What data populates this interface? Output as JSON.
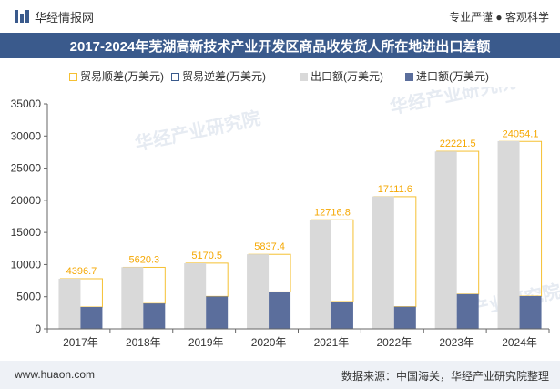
{
  "header": {
    "brand": "华经情报网",
    "tagline": "专业严谨 ● 客观科学"
  },
  "title": "2017-2024年芜湖高新技术产业开发区商品收发货人所在地进出口差额",
  "watermark": "华经产业研究院",
  "colors": {
    "title_bar": "#3a5a8c",
    "trade_surplus": "#f5c033",
    "trade_deficit": "#3a5a8c",
    "exports": "#d9d9d9",
    "imports": "#5b6e9c",
    "label": "#f5a700"
  },
  "chart_data": {
    "type": "bar",
    "categories": [
      "2017年",
      "2018年",
      "2019年",
      "2020年",
      "2021年",
      "2022年",
      "2023年",
      "2024年"
    ],
    "series": [
      {
        "name": "贸易顺差(万美元)",
        "values": [
          4396.7,
          5620.3,
          5170.5,
          5837.4,
          12716.8,
          17111.6,
          22221.5,
          24054.1
        ]
      },
      {
        "name": "贸易逆差(万美元)",
        "values": [
          0,
          0,
          0,
          0,
          0,
          0,
          0,
          0
        ]
      },
      {
        "name": "出口额(万美元)",
        "values": [
          7800,
          9600,
          10200,
          11600,
          17000,
          20600,
          27600,
          29200
        ]
      },
      {
        "name": "进口额(万美元)",
        "values": [
          3400,
          3950,
          5050,
          5750,
          4250,
          3450,
          5400,
          5100
        ]
      }
    ],
    "data_labels": [
      "4396.7",
      "5620.3",
      "5170.5",
      "5837.4",
      "12716.8",
      "17111.6",
      "22221.5",
      "24054.1"
    ],
    "yticks": [
      "0",
      "5000",
      "10000",
      "15000",
      "20000",
      "25000",
      "30000",
      "35000"
    ],
    "ylim": [
      0,
      35000
    ],
    "grid": false,
    "legend_position": "top"
  },
  "footer": {
    "website": "www.huaon.com",
    "source": "数据来源：中国海关，华经产业研究院整理"
  }
}
